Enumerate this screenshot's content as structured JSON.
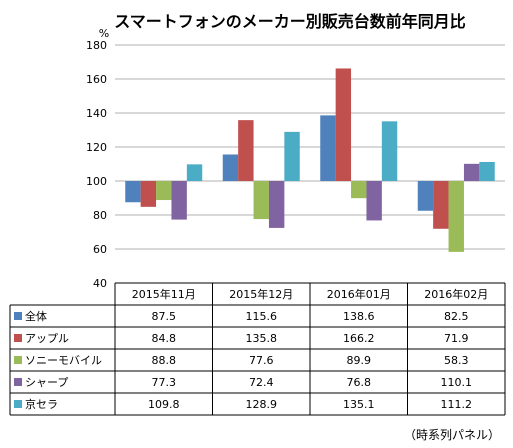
{
  "chart_data": {
    "type": "bar",
    "title": "スマートフォンのメーカー別販売台数前年同月比",
    "ylabel": "%",
    "ylim": [
      40,
      180
    ],
    "yticks": [
      40,
      60,
      80,
      100,
      120,
      140,
      160,
      180
    ],
    "baseline": 100,
    "grid": true,
    "legend": "table-left",
    "categories": [
      "2015年11月",
      "2015年12月",
      "2016年01月",
      "2016年02月"
    ],
    "series": [
      {
        "name": "全体",
        "color": "#4f81bd",
        "values": [
          87.5,
          115.6,
          138.6,
          82.5
        ]
      },
      {
        "name": "アップル",
        "color": "#c0504d",
        "values": [
          84.8,
          135.8,
          166.2,
          71.9
        ]
      },
      {
        "name": "ソニーモバイル",
        "color": "#9bbb59",
        "values": [
          88.8,
          77.6,
          89.9,
          58.3
        ]
      },
      {
        "name": "シャープ",
        "color": "#8064a2",
        "values": [
          77.3,
          72.4,
          76.8,
          110.1
        ]
      },
      {
        "name": "京セラ",
        "color": "#4bacc6",
        "values": [
          109.8,
          128.9,
          135.1,
          111.2
        ]
      }
    ],
    "source": "（時系列パネル）"
  }
}
